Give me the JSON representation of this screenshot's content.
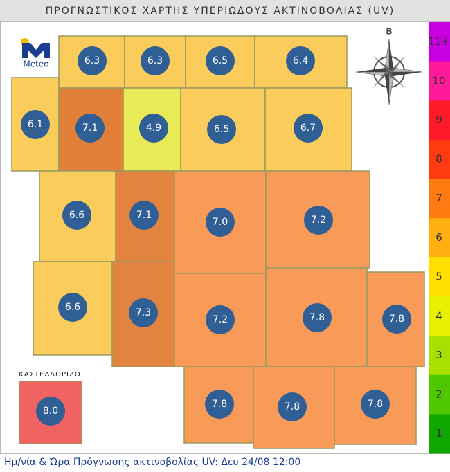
{
  "header": {
    "title": "ΠΡΟΓΝΩΣΤΙΚΟΣ ΧΑΡΤΗΣ ΥΠΕΡΙΩΔΟΥΣ ΑΚΤΙΝΟΒΟΛΙΑΣ (UV)"
  },
  "logo": {
    "text": "Meteo"
  },
  "compass": {
    "north": "Β"
  },
  "tiles": [
    {
      "value": "6.3",
      "color": "#f9c84e"
    },
    {
      "value": "6.3",
      "color": "#f9c84e"
    },
    {
      "value": "6.5",
      "color": "#f9c84e"
    },
    {
      "value": "6.4",
      "color": "#f9c84e"
    },
    {
      "value": "6.1",
      "color": "#f9c84e"
    },
    {
      "value": "7.1",
      "color": "#df7428"
    },
    {
      "value": "4.9",
      "color": "#e6e84a"
    },
    {
      "value": "6.5",
      "color": "#f9c84e"
    },
    {
      "value": "6.7",
      "color": "#f9c84e"
    },
    {
      "value": "6.6",
      "color": "#f9c84e"
    },
    {
      "value": "7.1",
      "color": "#e07a30"
    },
    {
      "value": "7.0",
      "color": "#f8924a"
    },
    {
      "value": "7.2",
      "color": "#f8924a"
    },
    {
      "value": "6.6",
      "color": "#f9c84e"
    },
    {
      "value": "7.3",
      "color": "#e07a30"
    },
    {
      "value": "7.2",
      "color": "#f8924a"
    },
    {
      "value": "7.8",
      "color": "#f8924a"
    },
    {
      "value": "7.8",
      "color": "#f8924a"
    },
    {
      "value": "7.8",
      "color": "#f8924a"
    },
    {
      "value": "7.8",
      "color": "#f8924a"
    },
    {
      "value": "7.8",
      "color": "#f8924a"
    }
  ],
  "kastellorizo": {
    "label": "ΚΑΣΤΕΛΛΟΡΙΖΟ",
    "value": "8.0",
    "color": "#f05555"
  },
  "scale": [
    {
      "label": "11+",
      "color": "#c800e0"
    },
    {
      "label": "10",
      "color": "#ff1a9a"
    },
    {
      "label": "9",
      "color": "#ff1a2a"
    },
    {
      "label": "8",
      "color": "#ff3a10"
    },
    {
      "label": "7",
      "color": "#ff7a10"
    },
    {
      "label": "6",
      "color": "#ffb010"
    },
    {
      "label": "5",
      "color": "#ffe000"
    },
    {
      "label": "4",
      "color": "#e8f000"
    },
    {
      "label": "3",
      "color": "#a8e000"
    },
    {
      "label": "2",
      "color": "#50c800"
    },
    {
      "label": "1",
      "color": "#10a800"
    }
  ],
  "footer": {
    "text": "Ημ/νία & Ώρα Πρόγνωσης ακτινοβολίας UV:  Δευ 24/08 12:00"
  }
}
